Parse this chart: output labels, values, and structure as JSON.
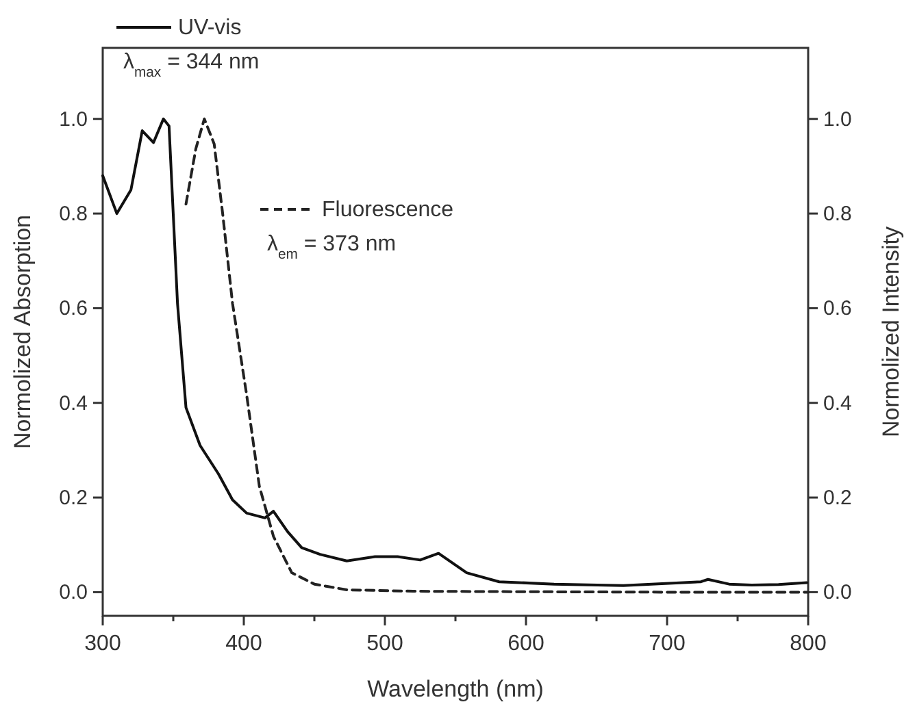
{
  "chart_data": {
    "type": "line",
    "xlabel": "Wavelength (nm)",
    "ylabel": "Normolized Absorption",
    "y2label": "Normolized Intensity",
    "xlim": [
      300,
      800
    ],
    "ylim": [
      -0.05,
      1.15
    ],
    "y2lim": [
      -0.05,
      1.15
    ],
    "xticks": [
      300,
      {
        "value": 350,
        "label": null
      },
      400,
      {
        "value": 450,
        "label": null
      },
      500,
      {
        "value": 550,
        "label": null
      },
      600,
      {
        "value": 650,
        "label": null
      },
      700,
      {
        "value": 750,
        "label": null
      },
      800
    ],
    "yticks": [
      {
        "value": 0,
        "label": "0.0"
      },
      {
        "value": 0.2,
        "label": "0.2"
      },
      {
        "value": 0.4,
        "label": "0.4"
      },
      {
        "value": 0.6,
        "label": "0.6"
      },
      {
        "value": 0.8,
        "label": "0.8"
      },
      {
        "value": 1,
        "label": "1.0"
      }
    ],
    "y2ticks": [
      {
        "value": 0,
        "label": "0.0"
      },
      {
        "value": 0.2,
        "label": "0.2"
      },
      {
        "value": 0.4,
        "label": "0.4"
      },
      {
        "value": 0.6,
        "label": "0.6"
      },
      {
        "value": 0.8,
        "label": "0.8"
      },
      {
        "value": 1,
        "label": "1.0"
      }
    ],
    "legend": "top left",
    "grid": false,
    "marker": "none",
    "annotations": [
      "λ$_{max}$ = 344 nm",
      "λ$_{em}$ = 373 nm"
    ],
    "series": [
      {
        "name": "UV-vis",
        "color": "#111111",
        "line_style": "solid",
        "x": [
          300,
          310,
          320,
          328,
          336,
          343,
          347,
          353,
          359,
          369,
          382,
          392,
          402,
          415,
          421,
          431,
          441,
          454,
          473,
          493,
          509,
          525,
          538,
          558,
          581,
          620,
          669,
          724,
          729,
          744,
          760,
          779,
          799
        ],
        "values": [
          0.88,
          0.8,
          0.85,
          0.975,
          0.95,
          1.0,
          0.985,
          0.61,
          0.39,
          0.31,
          0.25,
          0.195,
          0.167,
          0.157,
          0.171,
          0.128,
          0.094,
          0.08,
          0.066,
          0.075,
          0.075,
          0.068,
          0.082,
          0.041,
          0.022,
          0.017,
          0.014,
          0.022,
          0.027,
          0.017,
          0.015,
          0.016,
          0.02
        ]
      },
      {
        "name": "Fluorescence",
        "color": "#222222",
        "line_style": "dashed",
        "axis": "y2",
        "x": [
          359,
          366,
          372,
          379,
          385,
          392,
          402,
          411,
          421,
          434,
          450,
          473,
          520,
          600,
          700,
          800
        ],
        "values": [
          0.82,
          0.937,
          1.0,
          0.947,
          0.8,
          0.61,
          0.417,
          0.224,
          0.118,
          0.041,
          0.017,
          0.005,
          0.002,
          0.001,
          0.0,
          0.0
        ]
      }
    ]
  }
}
